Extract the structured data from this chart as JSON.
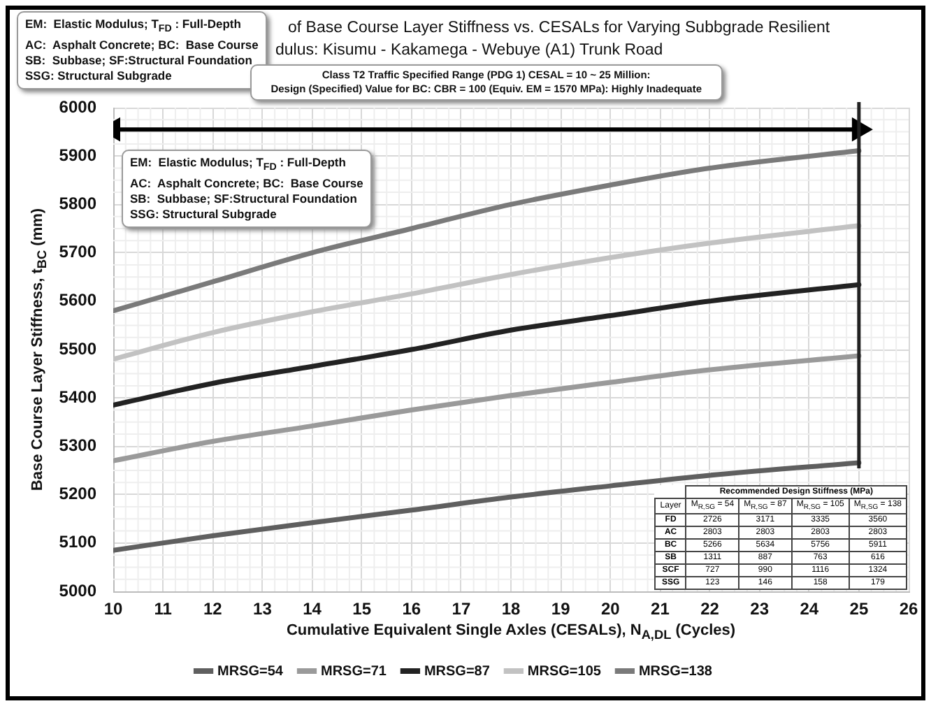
{
  "chart_data": [
    {
      "type": "line",
      "title": [
        "of Base Course Layer Stiffness vs. CESALs  for Varying Subbgrade Resilient",
        "dulus: Kisumu - Kakamega - Webuye (A1) Trunk Road"
      ],
      "xlabel": "Cumulative Equivalent Single Axles (CESALs), N$_{A,DL}$ (Cycles)",
      "ylabel": "Base Course Layer Stiffness, t$_{BC}$ (mm)",
      "x": [
        10,
        12,
        14,
        16,
        18,
        20,
        22,
        25
      ],
      "series": [
        {
          "name": "MRSG=54",
          "color": "#5f5f5f",
          "values": [
            5085,
            5115,
            5142,
            5168,
            5195,
            5218,
            5240,
            5266
          ]
        },
        {
          "name": "MRSG=71",
          "color": "#9a9a9a",
          "values": [
            5270,
            5310,
            5342,
            5375,
            5405,
            5432,
            5458,
            5487
          ]
        },
        {
          "name": "MRSG=87",
          "color": "#222222",
          "values": [
            5385,
            5430,
            5465,
            5500,
            5540,
            5570,
            5600,
            5634
          ]
        },
        {
          "name": "MRSG=105",
          "color": "#c2c2c2",
          "values": [
            5480,
            5535,
            5578,
            5615,
            5655,
            5690,
            5720,
            5756
          ]
        },
        {
          "name": "MRSG=138",
          "color": "#7a7a7a",
          "values": [
            5580,
            5640,
            5700,
            5750,
            5800,
            5840,
            5875,
            5911
          ]
        },
        {
          "type": "line",
          "color": "#000000",
          "x": [
            10,
            25
          ],
          "values": [
            5955,
            5955
          ],
          "marker": "triangle"
        }
      ],
      "xlim": [
        10,
        26
      ],
      "xticks": [
        10,
        11,
        12,
        13,
        14,
        15,
        16,
        17,
        18,
        19,
        20,
        21,
        22,
        23,
        24,
        25,
        26
      ],
      "ylim": [
        5000,
        6000
      ],
      "yticks": [
        5000,
        5100,
        5200,
        5300,
        5400,
        5500,
        5600,
        5700,
        5800,
        5900,
        6000
      ],
      "ref_lines": [
        {
          "axis": "x",
          "value": 25,
          "color": "#222222"
        }
      ],
      "annotations": [
        "EM:  Elastic Modulus; T$_{FD}$ : Full-Depth\nAC:  Asphalt Concrete; BC:  Base Course\nSB:  Subbase; SF:Structural Foundation\nSSG: Structural Subgrade",
        "Class T2 Traffic Specified Range (PDG 1) CESAL = 10 ~ 25 Million:\nDesign (Specified) Value for BC: CBR = 100 (Equiv. EM = 1570 MPa): Highly Inadequate",
        "EM:  Elastic Modulus; T$_{FD}$ : Full-Depth\nAC:  Asphalt Concrete; BC:  Base Course\nSB:  Subbase; SF:Structural Foundation\nSSG: Structural Subgrade"
      ],
      "grid": true,
      "legend": "bottom",
      "marker": "none",
      "line_style": "solid"
    },
    {
      "type": "other",
      "title": "Recommended Design Stiffness (MPa)",
      "xlabel": "Layer",
      "categories": [
        "FD",
        "AC",
        "BC",
        "SB",
        "SCF",
        "SSG"
      ],
      "series": [
        {
          "name": "M$_{R,SG}$ = 54",
          "values": [
            2726,
            2803,
            5266,
            1311,
            727,
            123
          ]
        },
        {
          "name": "M$_{R,SG}$ = 87",
          "values": [
            3171,
            2803,
            5634,
            887,
            990,
            146
          ]
        },
        {
          "name": "M$_{R,SG}$ = 105",
          "values": [
            3335,
            2803,
            5756,
            763,
            1116,
            158
          ]
        },
        {
          "name": "M$_{R,SG}$ = 138",
          "values": [
            3560,
            2803,
            5911,
            616,
            1324,
            179
          ]
        }
      ],
      "data_labels": true
    }
  ]
}
